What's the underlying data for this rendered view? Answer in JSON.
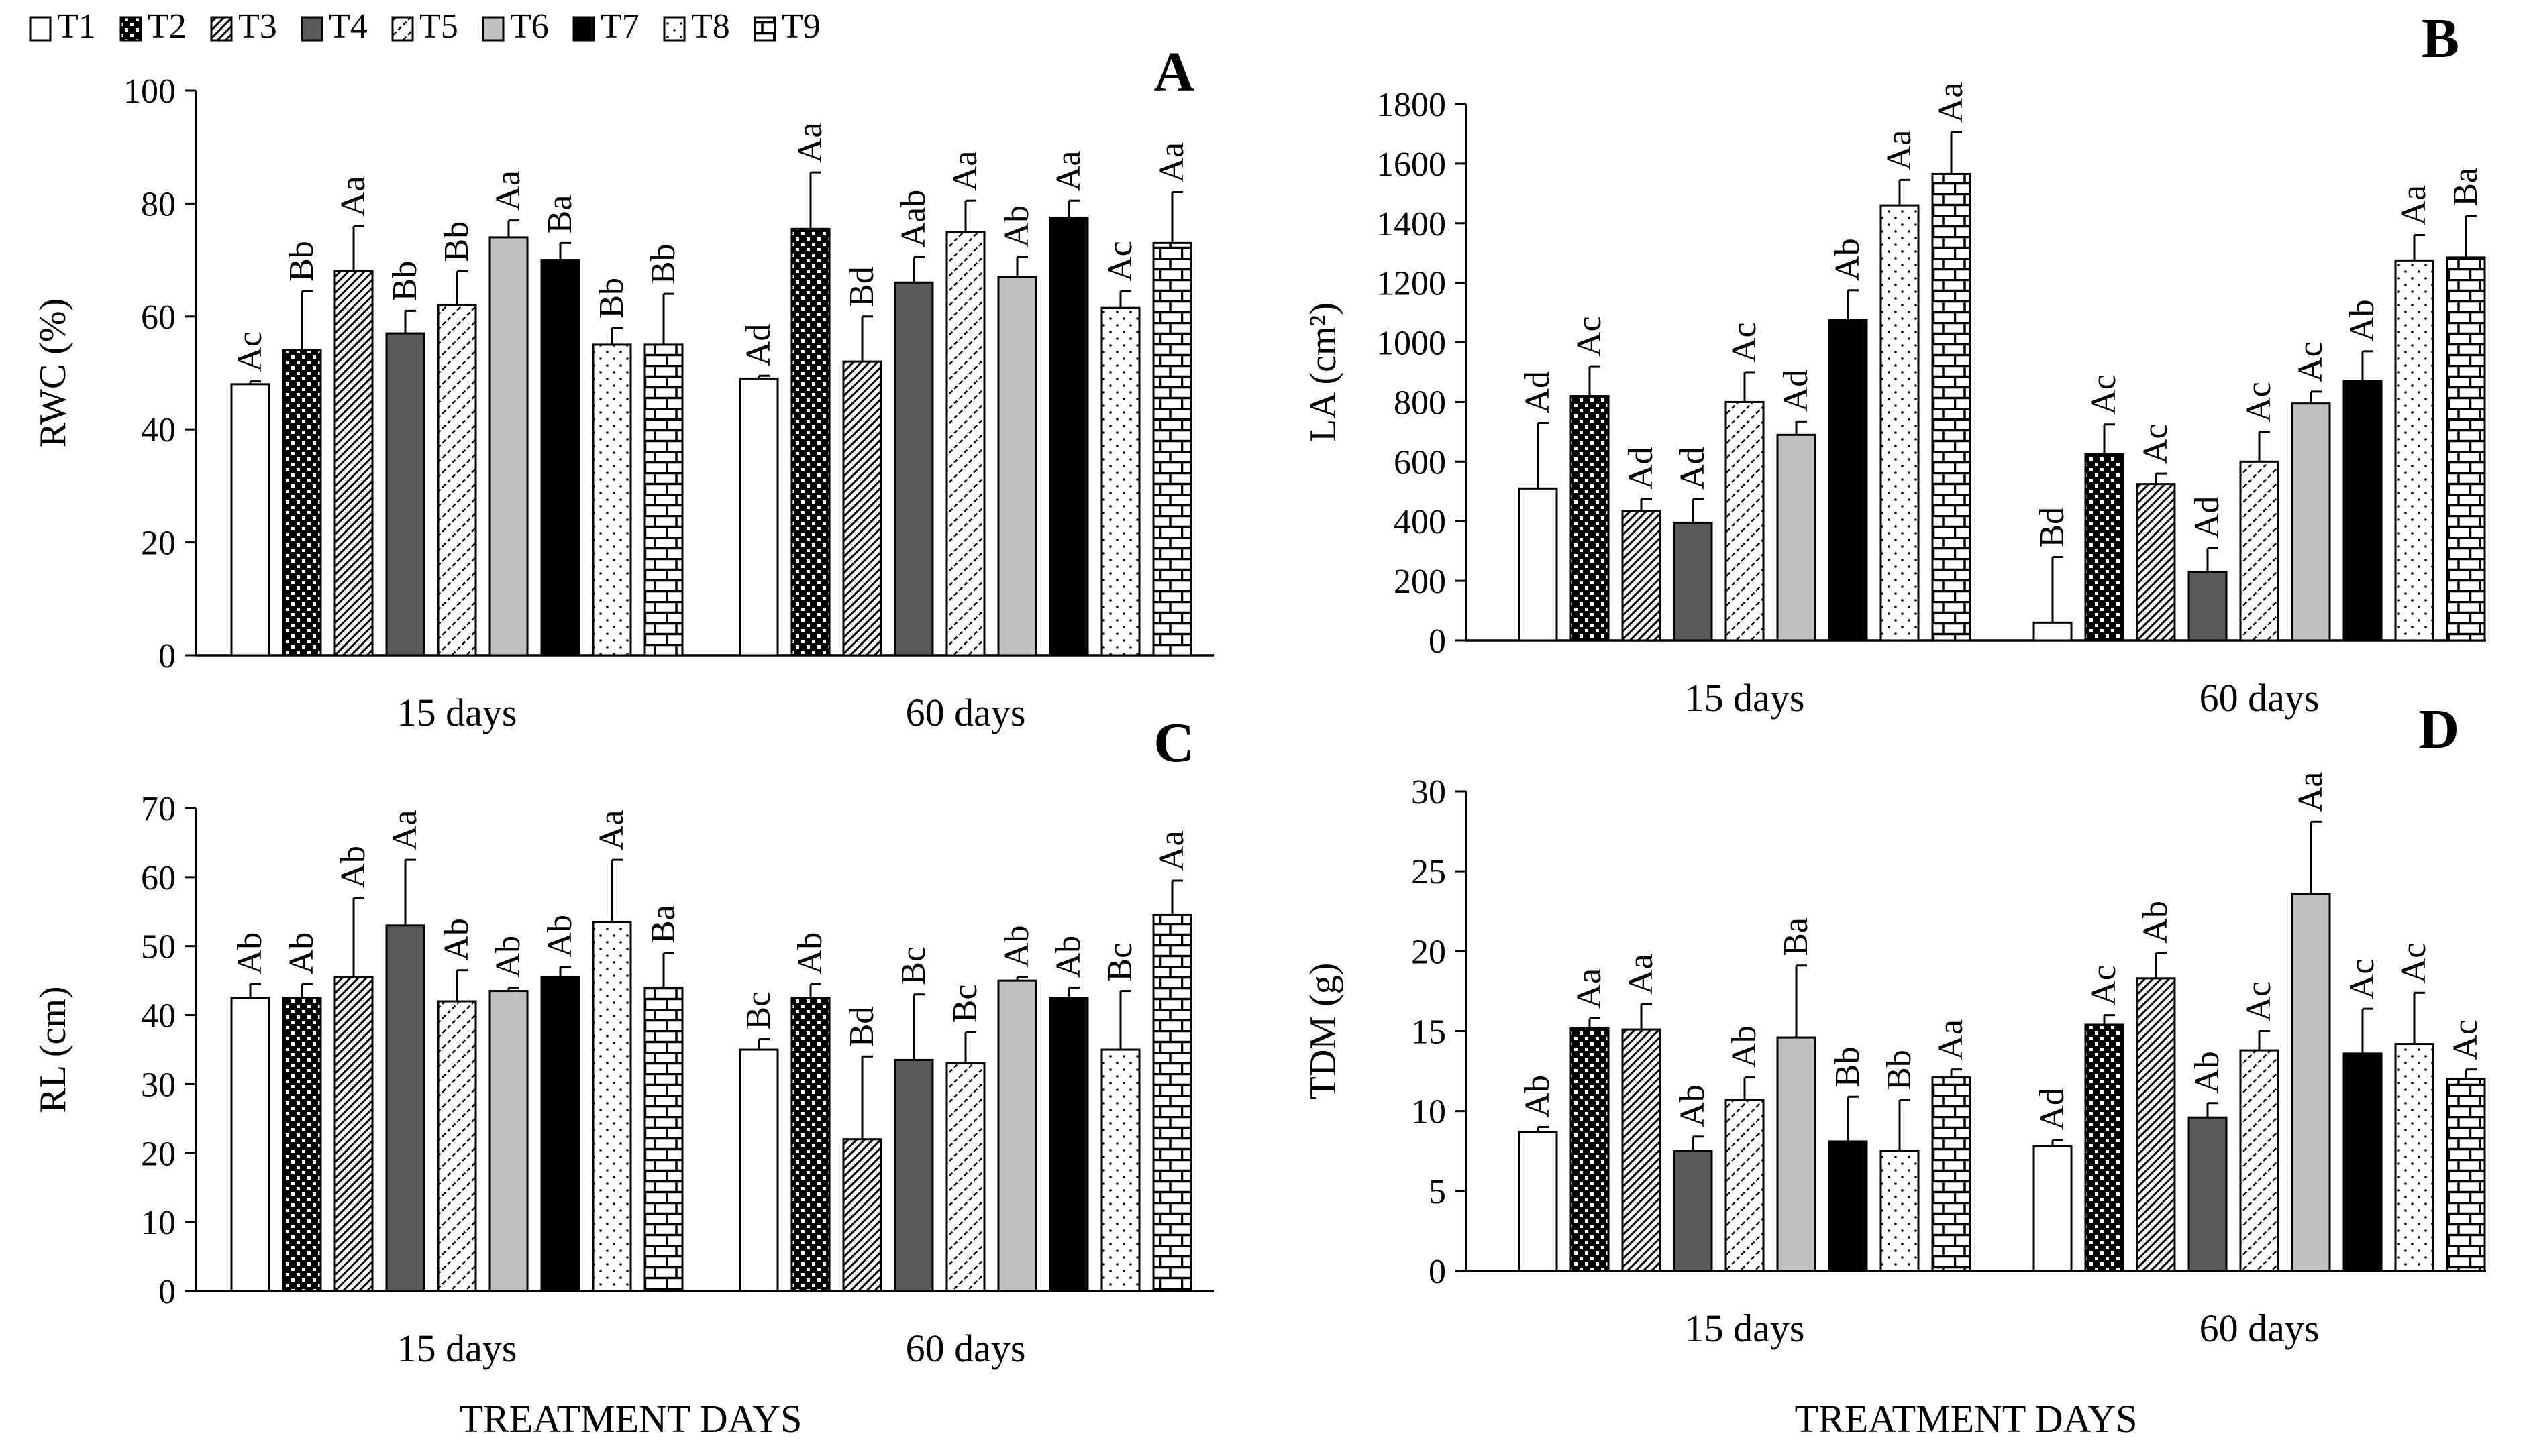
{
  "legend": {
    "entries": [
      {
        "name": "T1",
        "pattern": "pat-t1"
      },
      {
        "name": "T2",
        "pattern": "pat-t2"
      },
      {
        "name": "T3",
        "pattern": "pat-t3"
      },
      {
        "name": "T4",
        "pattern": "pat-t4"
      },
      {
        "name": "T5",
        "pattern": "pat-t5"
      },
      {
        "name": "T6",
        "pattern": "pat-t6"
      },
      {
        "name": "T7",
        "pattern": "pat-t7"
      },
      {
        "name": "T8",
        "pattern": "pat-t8"
      },
      {
        "name": "T9",
        "pattern": "pat-t9"
      }
    ]
  },
  "x_axis_title": "TREATMENT DAYS",
  "chart_data": [
    {
      "panel": "A",
      "type": "bar",
      "ylabel": "RWC (%)",
      "ylim": [
        0,
        100
      ],
      "yticks": [
        0,
        20,
        40,
        60,
        80,
        100
      ],
      "categories": [
        "15 days",
        "60 days"
      ],
      "series": [
        {
          "name": "T1",
          "values": [
            48,
            49
          ],
          "errors": [
            0.5,
            0.5
          ],
          "labels": [
            "Ac",
            "Ad"
          ]
        },
        {
          "name": "T2",
          "values": [
            54,
            75.5
          ],
          "errors": [
            10.5,
            10
          ],
          "labels": [
            "Bb",
            "Aa"
          ]
        },
        {
          "name": "T3",
          "values": [
            68,
            52
          ],
          "errors": [
            8,
            8
          ],
          "labels": [
            "Aa",
            "Bd"
          ]
        },
        {
          "name": "T4",
          "values": [
            57,
            66
          ],
          "errors": [
            4,
            4.5
          ],
          "labels": [
            "Bb",
            "Aab"
          ]
        },
        {
          "name": "T5",
          "values": [
            62,
            75
          ],
          "errors": [
            6,
            5.5
          ],
          "labels": [
            "Bb",
            "Aa"
          ]
        },
        {
          "name": "T6",
          "values": [
            74,
            67
          ],
          "errors": [
            3,
            3.5
          ],
          "labels": [
            "Aa",
            "Ab"
          ]
        },
        {
          "name": "T7",
          "values": [
            70,
            77.5
          ],
          "errors": [
            3,
            3
          ],
          "labels": [
            "Ba",
            "Aa"
          ]
        },
        {
          "name": "T8",
          "values": [
            55,
            61.5
          ],
          "errors": [
            3,
            3
          ],
          "labels": [
            "Bb",
            "Ac"
          ]
        },
        {
          "name": "T9",
          "values": [
            55,
            73
          ],
          "errors": [
            9,
            9
          ],
          "labels": [
            "Bb",
            "Aa"
          ]
        }
      ]
    },
    {
      "panel": "B",
      "type": "bar",
      "ylabel": "LA  (cm²)",
      "ylim": [
        0,
        1800
      ],
      "yticks": [
        0,
        200,
        400,
        600,
        800,
        1000,
        1200,
        1400,
        1600,
        1800
      ],
      "categories": [
        "15 days",
        "60 days"
      ],
      "series": [
        {
          "name": "T1",
          "values": [
            510,
            60
          ],
          "errors": [
            220,
            220
          ],
          "labels": [
            "Ad",
            "Bd"
          ]
        },
        {
          "name": "T2",
          "values": [
            820,
            625
          ],
          "errors": [
            100,
            100
          ],
          "labels": [
            "Ac",
            "Ac"
          ]
        },
        {
          "name": "T3",
          "values": [
            435,
            525
          ],
          "errors": [
            40,
            35
          ],
          "labels": [
            "Ad",
            "Ac"
          ]
        },
        {
          "name": "T4",
          "values": [
            395,
            230
          ],
          "errors": [
            80,
            80
          ],
          "labels": [
            "Ad",
            "Ad"
          ]
        },
        {
          "name": "T5",
          "values": [
            800,
            600
          ],
          "errors": [
            100,
            100
          ],
          "labels": [
            "Ac",
            "Ac"
          ]
        },
        {
          "name": "T6",
          "values": [
            690,
            795
          ],
          "errors": [
            45,
            40
          ],
          "labels": [
            "Ad",
            "Ac"
          ]
        },
        {
          "name": "T7",
          "values": [
            1075,
            870
          ],
          "errors": [
            100,
            100
          ],
          "labels": [
            "Ab",
            "Ab"
          ]
        },
        {
          "name": "T8",
          "values": [
            1460,
            1275
          ],
          "errors": [
            85,
            85
          ],
          "labels": [
            "Aa",
            "Aa"
          ]
        },
        {
          "name": "T9",
          "values": [
            1565,
            1285
          ],
          "errors": [
            140,
            140
          ],
          "labels": [
            "Aa",
            "Ba"
          ]
        }
      ]
    },
    {
      "panel": "C",
      "type": "bar",
      "ylabel": "RL (cm)",
      "ylim": [
        0,
        70
      ],
      "yticks": [
        0,
        10,
        20,
        30,
        40,
        50,
        60,
        70
      ],
      "categories": [
        "15 days",
        "60 days"
      ],
      "series": [
        {
          "name": "T1",
          "values": [
            42.5,
            35
          ],
          "errors": [
            2,
            1.5
          ],
          "labels": [
            "Ab",
            "Bc"
          ]
        },
        {
          "name": "T2",
          "values": [
            42.5,
            42.5
          ],
          "errors": [
            2,
            2
          ],
          "labels": [
            "Ab",
            "Ab"
          ]
        },
        {
          "name": "T3",
          "values": [
            45.5,
            22
          ],
          "errors": [
            11.5,
            12
          ],
          "labels": [
            "Ab",
            "Bd"
          ]
        },
        {
          "name": "T4",
          "values": [
            53,
            33.5
          ],
          "errors": [
            9.5,
            9.5
          ],
          "labels": [
            "Aa",
            "Bc"
          ]
        },
        {
          "name": "T5",
          "values": [
            42,
            33
          ],
          "errors": [
            4.5,
            4.5
          ],
          "labels": [
            "Ab",
            "Bc"
          ]
        },
        {
          "name": "T6",
          "values": [
            43.5,
            45
          ],
          "errors": [
            0.5,
            0.5
          ],
          "labels": [
            "Ab",
            "Ab"
          ]
        },
        {
          "name": "T7",
          "values": [
            45.5,
            42.5
          ],
          "errors": [
            1.5,
            1.5
          ],
          "labels": [
            "Ab",
            "Ab"
          ]
        },
        {
          "name": "T8",
          "values": [
            53.5,
            35
          ],
          "errors": [
            9,
            8.5
          ],
          "labels": [
            "Aa",
            "Bc"
          ]
        },
        {
          "name": "T9",
          "values": [
            44,
            54.5
          ],
          "errors": [
            5,
            5
          ],
          "labels": [
            "Ba",
            "Aa"
          ]
        }
      ]
    },
    {
      "panel": "D",
      "type": "bar",
      "ylabel": "TDM (g)",
      "ylim": [
        0,
        30
      ],
      "yticks": [
        0,
        5,
        10,
        15,
        20,
        25,
        30
      ],
      "categories": [
        "15 days",
        "60 days"
      ],
      "series": [
        {
          "name": "T1",
          "values": [
            8.7,
            7.8
          ],
          "errors": [
            0.3,
            0.4
          ],
          "labels": [
            "Ab",
            "Ad"
          ]
        },
        {
          "name": "T2",
          "values": [
            15.2,
            15.4
          ],
          "errors": [
            0.6,
            0.6
          ],
          "labels": [
            "Aa",
            "Ac"
          ]
        },
        {
          "name": "T3",
          "values": [
            15.1,
            18.3
          ],
          "errors": [
            1.6,
            1.6
          ],
          "labels": [
            "Aa",
            "Ab"
          ]
        },
        {
          "name": "T4",
          "values": [
            7.5,
            9.6
          ],
          "errors": [
            0.9,
            0.9
          ],
          "labels": [
            "Ab",
            "Ab"
          ]
        },
        {
          "name": "T5",
          "values": [
            10.7,
            13.8
          ],
          "errors": [
            1.4,
            1.2
          ],
          "labels": [
            "Ab",
            "Ac"
          ]
        },
        {
          "name": "T6",
          "values": [
            14.6,
            23.6
          ],
          "errors": [
            4.5,
            4.5
          ],
          "labels": [
            "Ba",
            "Aa"
          ]
        },
        {
          "name": "T7",
          "values": [
            8.1,
            13.6
          ],
          "errors": [
            2.8,
            2.8
          ],
          "labels": [
            "Bb",
            "Ac"
          ]
        },
        {
          "name": "T8",
          "values": [
            7.5,
            14.2
          ],
          "errors": [
            3.2,
            3.2
          ],
          "labels": [
            "Bb",
            "Ac"
          ]
        },
        {
          "name": "T9",
          "values": [
            12.1,
            12
          ],
          "errors": [
            0.5,
            0.6
          ],
          "labels": [
            "Aa",
            "Ac"
          ]
        }
      ]
    }
  ]
}
